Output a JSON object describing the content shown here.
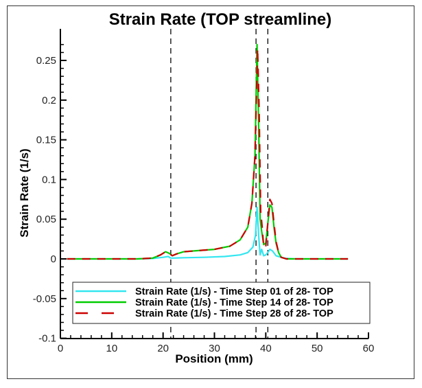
{
  "chart_data": {
    "type": "line",
    "title": "Strain Rate (TOP streamline)",
    "xlabel": "Position (mm)",
    "ylabel": "Strain Rate (1/s)",
    "xlim": [
      0,
      60
    ],
    "ylim": [
      -0.1,
      0.28
    ],
    "xticks": [
      0,
      10,
      20,
      30,
      40,
      50,
      60
    ],
    "xtick_labels": [
      "0",
      "10",
      "20",
      "30",
      "40",
      "50",
      "60"
    ],
    "yticks": [
      -0.1,
      -0.05,
      0,
      0.05,
      0.1,
      0.15,
      0.2,
      0.25
    ],
    "ytick_labels": [
      "-0.1",
      "-0.05",
      "0",
      "0.05",
      "0.1",
      "0.15",
      "0.2",
      "0.25"
    ],
    "grid": false,
    "legend_position": "bottom-center",
    "reference_lines_x": [
      21.5,
      38.1,
      40.4
    ],
    "series": [
      {
        "name": "Strain Rate (1/s) - Time Step 01 of 28- TOP",
        "color": "#33e6f0",
        "style": "solid",
        "x": [
          1.3,
          10,
          15,
          18,
          20,
          21,
          21.5,
          22,
          24,
          28,
          32,
          35,
          36.5,
          37.5,
          38,
          38.3,
          38.6,
          38.9,
          39.2,
          39.6,
          40,
          40.4,
          40.8,
          41.3,
          42,
          43,
          44,
          46,
          50,
          56
        ],
        "values": [
          0,
          0,
          0,
          0.0005,
          0.002,
          0.003,
          0.001,
          0.001,
          0.0015,
          0.002,
          0.003,
          0.005,
          0.008,
          0.015,
          0.03,
          0.065,
          0.03,
          0.005,
          0.012,
          0.004,
          0.005,
          0.008,
          0.012,
          0.01,
          0.004,
          0.002,
          0.0005,
          0,
          0,
          0
        ]
      },
      {
        "name": "Strain Rate (1/s) - Time Step 14 of 28- TOP",
        "color": "#00cc00",
        "style": "solid",
        "x": [
          1.3,
          10,
          15,
          18,
          19.5,
          20.5,
          21.2,
          21.8,
          22.5,
          24,
          26,
          30,
          33,
          35,
          36.5,
          37.3,
          37.9,
          38.3,
          38.6,
          38.9,
          39.2,
          39.6,
          40,
          40.4,
          40.8,
          41.2,
          41.6,
          42,
          42.5,
          43,
          44,
          46,
          50,
          56
        ],
        "values": [
          0,
          0,
          0,
          0.001,
          0.005,
          0.009,
          0.007,
          0.004,
          0.006,
          0.009,
          0.01,
          0.012,
          0.016,
          0.024,
          0.04,
          0.07,
          0.13,
          0.27,
          0.17,
          0.05,
          0.035,
          0.018,
          0.02,
          0.045,
          0.068,
          0.065,
          0.04,
          0.02,
          0.008,
          0.002,
          0,
          0,
          0,
          0
        ]
      },
      {
        "name": "Strain Rate (1/s) - Time Step 28 of 28- TOP",
        "color": "#cc0000",
        "style": "dashed",
        "x": [
          1.3,
          10,
          15,
          18,
          19.5,
          20.5,
          21.2,
          21.8,
          22.5,
          24,
          26,
          30,
          33,
          35,
          36.5,
          37.3,
          37.9,
          38.4,
          38.7,
          39,
          39.3,
          39.6,
          40,
          40.4,
          40.8,
          41.2,
          41.6,
          42,
          42.5,
          43,
          44,
          46,
          50,
          56
        ],
        "values": [
          0,
          0,
          0,
          0.001,
          0.005,
          0.009,
          0.007,
          0.004,
          0.006,
          0.009,
          0.01,
          0.012,
          0.016,
          0.024,
          0.04,
          0.07,
          0.13,
          0.265,
          0.19,
          0.06,
          0.04,
          0.015,
          0.015,
          0.045,
          0.075,
          0.07,
          0.045,
          0.022,
          0.008,
          0.002,
          0,
          0,
          0,
          0
        ]
      }
    ]
  }
}
